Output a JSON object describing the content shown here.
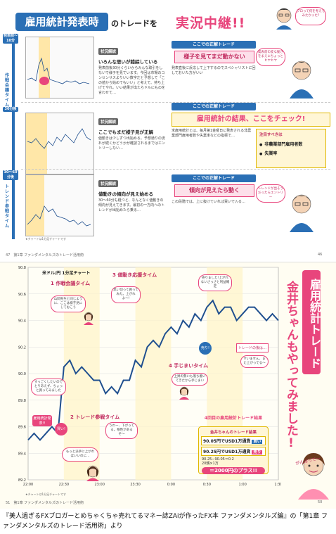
{
  "top": {
    "title_banner": "雇用統計発表時",
    "title_suffix": "のトレードを",
    "live_title": "実況中継!!",
    "top_bubble": "プロって何を考えてみたかった?",
    "time_labels": [
      "発表前〜10分",
      "30分後",
      "30〜60分後"
    ],
    "vertical_labels": [
      "作",
      "戦",
      "会",
      "議",
      "タ",
      "イ",
      "ム",
      "ト",
      "レ",
      "ン",
      "ド",
      "参",
      "戦",
      "タ",
      "イ",
      "ム"
    ],
    "sections": [
      {
        "head": "状況解説",
        "sub": "いろんな思いが錯綜している",
        "body": "発表前後30分くらいからみんな取引をしないで様子を見ています。今回は市場のコンセンサスよりいい数字だと予想して「この値から始めてもいい」と考えて、持ち上げてやれ。いい結果が出たらドルにものを言わせて…",
        "note_bar": "ここでの正解トレード",
        "pink": "様子を見てまだ動かない",
        "tip": "発表直後に反応して上下するのでスペシャリストに回しておいた方がいい",
        "bubble": "発表前の変な動きをまえにちょっとヒヤヒヤ"
      },
      {
        "head": "状況解説",
        "sub": "ここでもまだ様子見が正解",
        "body": "値動きは少しずつ出始める。予想通りの流れが続くかどうかが確認されるまではエントリーしない…",
        "note_bar": "ここでの正解トレード",
        "pink": "",
        "tip": "米雇用統計とは、毎月第1金曜日に発表される非農業部門雇用者数や失業率などの指標で…",
        "bubble": ""
      },
      {
        "head": "状況解説",
        "sub": "値動きの傾向が見え始める",
        "body": "30〜60分も経つと、なんとなく値動きの傾向が見えてきます。最初の一方向へのトレンドが出始めたら乗る…",
        "note_bar": "ここでの正解トレード",
        "pink": "傾向が見えたら動く",
        "tip": "この段階では、上に抜けていれば買いで入る…",
        "bubble": "トレンドが出そうだったらエントリー"
      }
    ],
    "check_title": "雇用統計の結果、ここをチェック!",
    "note_title": "注目すべきは",
    "note_items": [
      "非農業部門雇用者数",
      "失業率"
    ],
    "footnote": "★チャートは1分足チャートです",
    "folio_left": "47",
    "folio_right": "46",
    "running_head": "第1章 ファンダメンタルズのトレード活用術"
  },
  "bottom": {
    "chart_label": "米ドル/円 1分足チャート",
    "events": [
      {
        "num": "1",
        "label": "作戦会議タイム"
      },
      {
        "num": "2",
        "label": "トレード参戦タイム"
      },
      {
        "num": "3",
        "label": "値動き応援タイム"
      },
      {
        "num": "4",
        "label": "手じまいタイム"
      }
    ],
    "callouts": [
      "雇用統計発表!!",
      "売り!",
      "買い!",
      "トレードの後は…"
    ],
    "bubbles": [
      "山岡先生と同じように、ここは様子見にしておこう",
      "思い切って買ってみた。上がれよ〜!",
      "うわー、下がってる。根性があるぞ〜",
      "もっと派手に上がればいいのに…",
      "売りました!上がれないさっさと利益確定",
      "上昇の勢いも落ち着いてきたから手じまい",
      "すいません、また上がってる〜"
    ],
    "side_note": "すっごくしたいのでとりあえず、ちょっと買ってみました",
    "vertical_title_1": "雇用統計トレード",
    "vertical_title_2": "金井ちゃんもやってみました!",
    "result_title": "4回目の雇用統計トレード結果",
    "result_title_prefix": "金井ちゃんのトレード結果",
    "results": [
      {
        "text": "90.05円でUSD1万通貨",
        "tag": "買い"
      },
      {
        "text": "90.25円でUSD1万通貨",
        "tag": "売り"
      }
    ],
    "calc_1": "90.25−90.05＝0.2",
    "calc_2": "20銭×1万",
    "total": "＝2000円のプラス!!",
    "ganbatte": "がんばって〜",
    "footnote": "★チャートは1分足チャートです",
    "folio_left": "51",
    "folio_right": "50",
    "running_head": "第1章 ファンダメンタルズのトレード活用術"
  },
  "chart_data": [
    {
      "type": "line",
      "title": "",
      "ylabel": "米ドル/円",
      "xlabel": "",
      "x": [
        "22:00",
        "22:05",
        "22:10",
        "22:15",
        "22:20",
        "22:25",
        "22:30",
        "22:35",
        "22:40",
        "22:45",
        "22:50",
        "22:55",
        "23:00",
        "23:05",
        "23:10",
        "23:15",
        "23:20",
        "23:25",
        "23:30",
        "23:35",
        "23:40",
        "23:45",
        "23:50",
        "23:55",
        "0:00",
        "0:05",
        "0:10",
        "0:15",
        "0:20",
        "0:25",
        "0:30",
        "0:35",
        "0:40",
        "0:45",
        "0:50",
        "0:55",
        "1:00",
        "1:05",
        "1:10",
        "1:15",
        "1:20",
        "1:25",
        "1:30"
      ],
      "y": [
        89.5,
        89.55,
        89.5,
        89.55,
        89.6,
        89.55,
        90.05,
        90.1,
        90.0,
        90.05,
        90.0,
        89.95,
        89.95,
        89.85,
        89.9,
        89.85,
        89.95,
        89.95,
        90.1,
        90.05,
        90.2,
        90.25,
        90.2,
        90.3,
        90.35,
        90.3,
        90.4,
        90.35,
        90.45,
        90.4,
        90.5,
        90.55,
        90.45,
        90.5,
        90.5,
        90.4,
        90.45,
        90.5,
        90.5,
        90.45,
        90.4,
        90.45,
        90.4
      ],
      "ylim": [
        89.2,
        90.8
      ],
      "yticks": [
        "89.2",
        "89.4",
        "89.6",
        "89.8",
        "90.0",
        "90.2",
        "90.4",
        "90.6",
        "90.8"
      ],
      "xticks": [
        "22:00",
        "22:30",
        "23:00",
        "23:30",
        "0:00",
        "0:30",
        "1:00",
        "1:30"
      ]
    }
  ]
}
